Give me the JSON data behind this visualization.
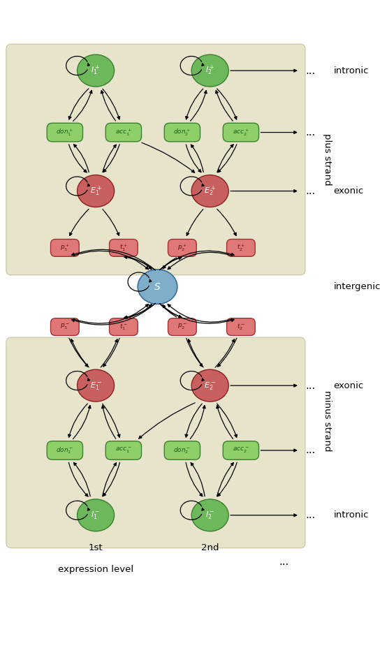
{
  "fig_width": 5.44,
  "fig_height": 9.38,
  "box_color": "#e8e4cc",
  "intron_fill": "#6db85a",
  "intron_edge": "#3a8030",
  "exon_fill": "#c96060",
  "exon_edge": "#8c2020",
  "don_acc_fill": "#8ecf6a",
  "don_acc_edge": "#3a8030",
  "pt_fill": "#e07878",
  "pt_edge": "#a03030",
  "S_fill": "#7faecb",
  "S_edge": "#3a6a9e",
  "text_dark": "#111111",
  "plus_strand_label": "plus strand",
  "minus_strand_label": "minus strand",
  "intronic_label": "intronic",
  "exonic_label": "exonic",
  "intergenic_label": "intergenic"
}
